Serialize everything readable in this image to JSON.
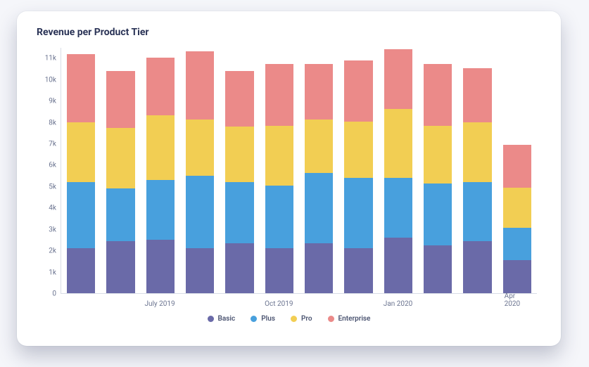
{
  "title": "Revenue per Product Tier",
  "chart": {
    "type": "stacked-bar",
    "background_color": "#ffffff",
    "title_fontsize": 14,
    "title_color": "#2a3356",
    "axis_color": "#d9dde6",
    "tick_fontsize": 10,
    "tick_color": "#6b7490",
    "ylim": [
      0,
      11500
    ],
    "ytick_step": 1000,
    "yticks": [
      {
        "v": 0,
        "label": "0"
      },
      {
        "v": 1000,
        "label": "1k"
      },
      {
        "v": 2000,
        "label": "2k"
      },
      {
        "v": 3000,
        "label": "3k"
      },
      {
        "v": 4000,
        "label": "4k"
      },
      {
        "v": 5000,
        "label": "5k"
      },
      {
        "v": 6000,
        "label": "6k"
      },
      {
        "v": 7000,
        "label": "7k"
      },
      {
        "v": 8000,
        "label": "8k"
      },
      {
        "v": 9000,
        "label": "9k"
      },
      {
        "v": 10000,
        "label": "10k"
      },
      {
        "v": 11000,
        "label": "11k"
      }
    ],
    "series": [
      {
        "key": "basic",
        "label": "Basic",
        "color": "#6a6aa8"
      },
      {
        "key": "plus",
        "label": "Plus",
        "color": "#48a0dd"
      },
      {
        "key": "pro",
        "label": "Pro",
        "color": "#f2ce53"
      },
      {
        "key": "enterprise",
        "label": "Enterprise",
        "color": "#eb8a89"
      }
    ],
    "categories": [
      {
        "label": "",
        "values": {
          "basic": 2100,
          "plus": 3100,
          "pro": 2800,
          "enterprise": 3200
        }
      },
      {
        "label": "",
        "values": {
          "basic": 2450,
          "plus": 2450,
          "pro": 2850,
          "enterprise": 2650
        }
      },
      {
        "label": "July 2019",
        "values": {
          "basic": 2500,
          "plus": 2800,
          "pro": 3050,
          "enterprise": 2700
        }
      },
      {
        "label": "",
        "values": {
          "basic": 2100,
          "plus": 3400,
          "pro": 2650,
          "enterprise": 3200
        }
      },
      {
        "label": "",
        "values": {
          "basic": 2350,
          "plus": 2850,
          "pro": 2600,
          "enterprise": 2600
        }
      },
      {
        "label": "Oct 2019",
        "values": {
          "basic": 2100,
          "plus": 2950,
          "pro": 2800,
          "enterprise": 2900
        }
      },
      {
        "label": "",
        "values": {
          "basic": 2350,
          "plus": 3300,
          "pro": 2500,
          "enterprise": 2600
        }
      },
      {
        "label": "",
        "values": {
          "basic": 2100,
          "plus": 3300,
          "pro": 2650,
          "enterprise": 2850
        }
      },
      {
        "label": "Jan 2020",
        "values": {
          "basic": 2600,
          "plus": 2800,
          "pro": 3250,
          "enterprise": 2800
        }
      },
      {
        "label": "",
        "values": {
          "basic": 2250,
          "plus": 2900,
          "pro": 2700,
          "enterprise": 2900
        }
      },
      {
        "label": "",
        "values": {
          "basic": 2450,
          "plus": 2750,
          "pro": 2800,
          "enterprise": 2550
        }
      },
      {
        "label": "Apr 2020",
        "values": {
          "basic": 1550,
          "plus": 1500,
          "pro": 1900,
          "enterprise": 2000
        }
      }
    ],
    "bar_width_ratio": 0.72
  }
}
